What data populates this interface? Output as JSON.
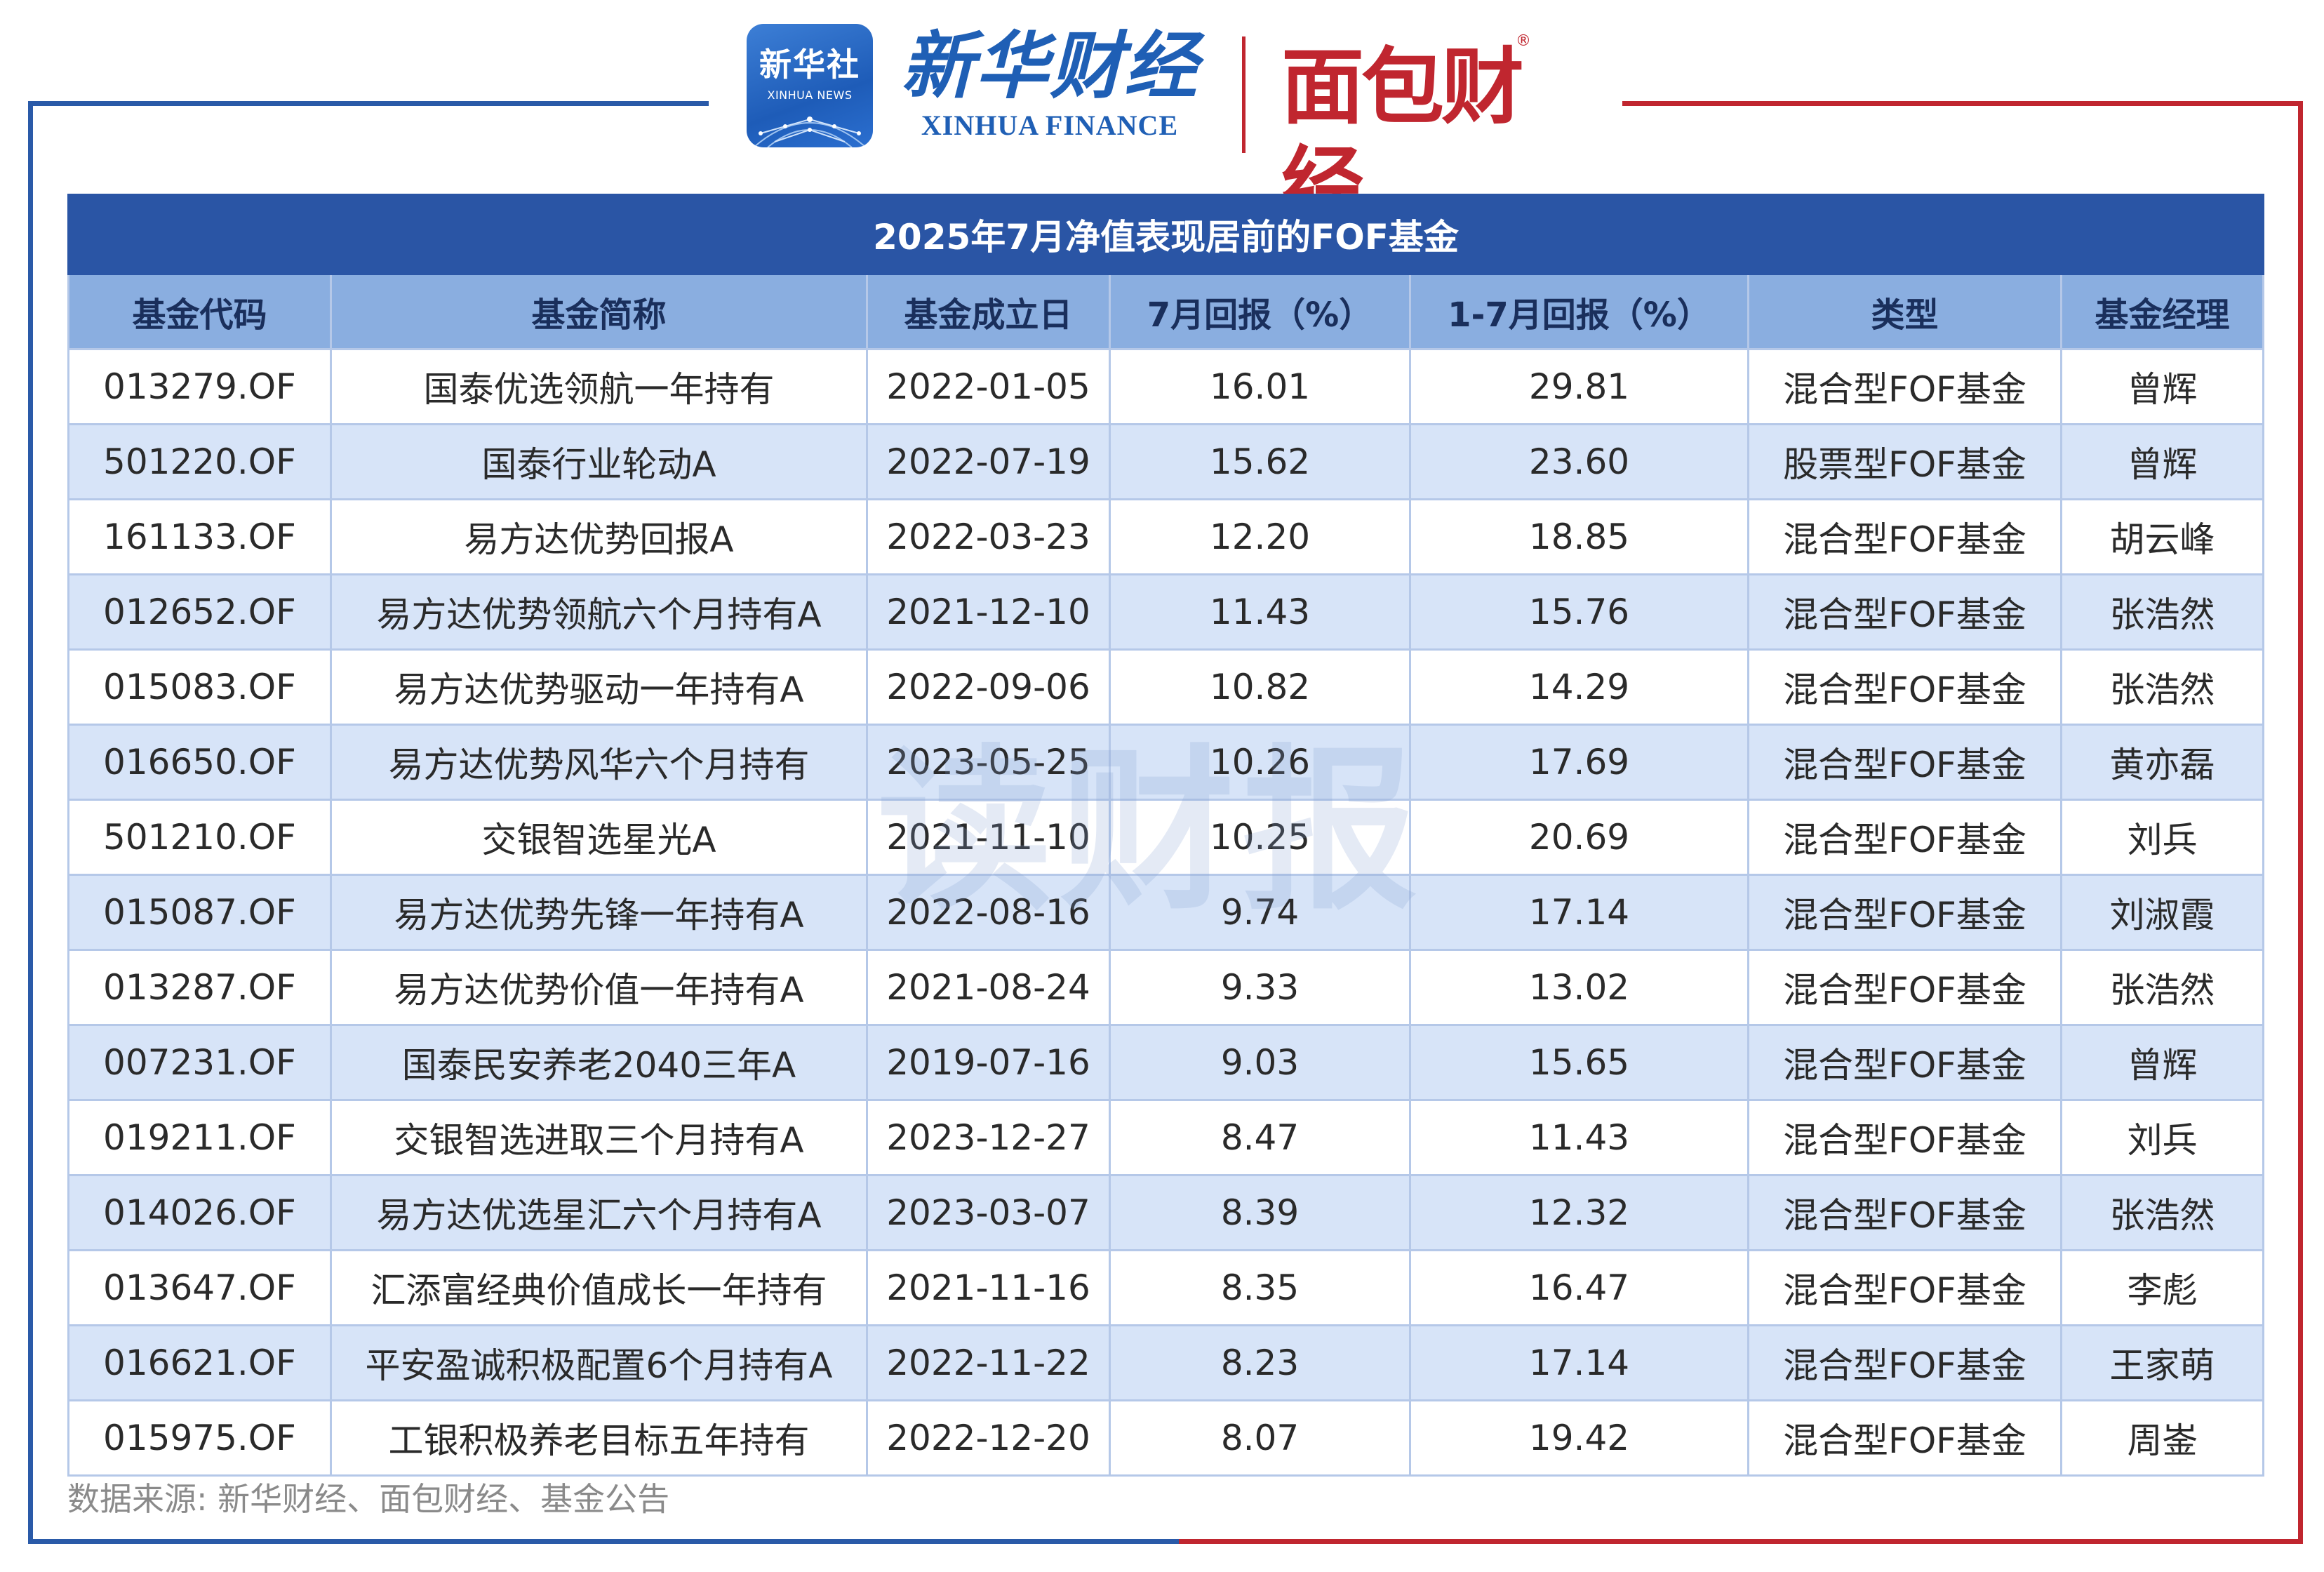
{
  "header": {
    "logo_xinhua_news_cn": "新华社",
    "logo_xinhua_news_en": "XINHUA NEWS",
    "logo_xinhua_finance_cn": "新华财经",
    "logo_xinhua_finance_en": "XINHUA FINANCE",
    "logo_mianbao_cn": "面包财经",
    "logo_mianbao_reg": "®"
  },
  "colors": {
    "title_bg": "#2a55a5",
    "header_bg": "#8aaee0",
    "stripe_bg": "#d7e4f8",
    "frame_blue": "#2a5aa8",
    "frame_red": "#c0262f"
  },
  "table": {
    "title": "2025年7月净值表现居前的FOF基金",
    "columns": [
      "基金代码",
      "基金简称",
      "基金成立日",
      "7月回报（%）",
      "1-7月回报（%）",
      "类型",
      "基金经理"
    ],
    "rows": [
      [
        "013279.OF",
        "国泰优选领航一年持有",
        "2022-01-05",
        "16.01",
        "29.81",
        "混合型FOF基金",
        "曾辉"
      ],
      [
        "501220.OF",
        "国泰行业轮动A",
        "2022-07-19",
        "15.62",
        "23.60",
        "股票型FOF基金",
        "曾辉"
      ],
      [
        "161133.OF",
        "易方达优势回报A",
        "2022-03-23",
        "12.20",
        "18.85",
        "混合型FOF基金",
        "胡云峰"
      ],
      [
        "012652.OF",
        "易方达优势领航六个月持有A",
        "2021-12-10",
        "11.43",
        "15.76",
        "混合型FOF基金",
        "张浩然"
      ],
      [
        "015083.OF",
        "易方达优势驱动一年持有A",
        "2022-09-06",
        "10.82",
        "14.29",
        "混合型FOF基金",
        "张浩然"
      ],
      [
        "016650.OF",
        "易方达优势风华六个月持有",
        "2023-05-25",
        "10.26",
        "17.69",
        "混合型FOF基金",
        "黄亦磊"
      ],
      [
        "501210.OF",
        "交银智选星光A",
        "2021-11-10",
        "10.25",
        "20.69",
        "混合型FOF基金",
        "刘兵"
      ],
      [
        "015087.OF",
        "易方达优势先锋一年持有A",
        "2022-08-16",
        "9.74",
        "17.14",
        "混合型FOF基金",
        "刘淑霞"
      ],
      [
        "013287.OF",
        "易方达优势价值一年持有A",
        "2021-08-24",
        "9.33",
        "13.02",
        "混合型FOF基金",
        "张浩然"
      ],
      [
        "007231.OF",
        "国泰民安养老2040三年A",
        "2019-07-16",
        "9.03",
        "15.65",
        "混合型FOF基金",
        "曾辉"
      ],
      [
        "019211.OF",
        "交银智选进取三个月持有A",
        "2023-12-27",
        "8.47",
        "11.43",
        "混合型FOF基金",
        "刘兵"
      ],
      [
        "014026.OF",
        "易方达优选星汇六个月持有A",
        "2023-03-07",
        "8.39",
        "12.32",
        "混合型FOF基金",
        "张浩然"
      ],
      [
        "013647.OF",
        "汇添富经典价值成长一年持有",
        "2021-11-16",
        "8.35",
        "16.47",
        "混合型FOF基金",
        "李彪"
      ],
      [
        "016621.OF",
        "平安盈诚积极配置6个月持有A",
        "2022-11-22",
        "8.23",
        "17.14",
        "混合型FOF基金",
        "王家萌"
      ],
      [
        "015975.OF",
        "工银积极养老目标五年持有",
        "2022-12-20",
        "8.07",
        "19.42",
        "混合型FOF基金",
        "周崟"
      ]
    ]
  },
  "watermark": "读财报",
  "source_note": "数据来源: 新华财经、面包财经、基金公告"
}
